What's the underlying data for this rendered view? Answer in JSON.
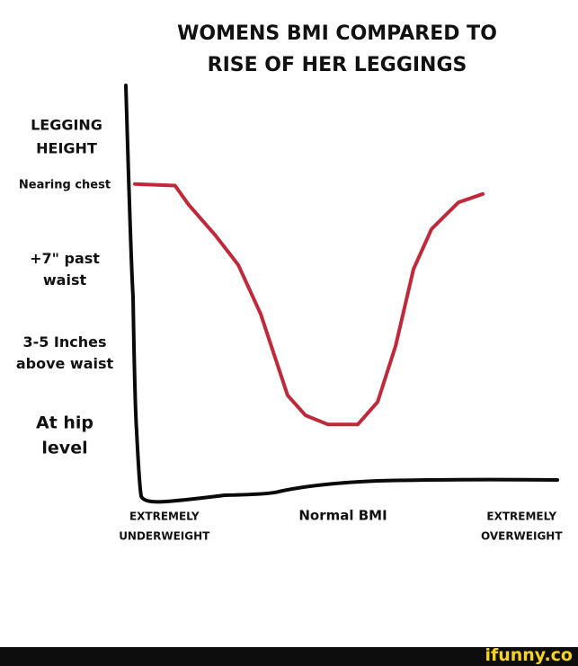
{
  "chart_data": {
    "type": "line",
    "title": [
      "WOMENS BMI COMPARED TO",
      "RISE OF HER LEGGINGS"
    ],
    "y_label": [
      "LEGGING",
      "HEIGHT"
    ],
    "xlim": [
      -0.17,
      2.2
    ],
    "ylim": [
      0.25,
      5.2
    ],
    "xticks": [
      {
        "value": 0,
        "label": "EXTREMELY UNDERWEIGHT"
      },
      {
        "value": 1,
        "label": "Normal BMI"
      },
      {
        "value": 2,
        "label": "EXTREMELY OVERWEIGHT"
      }
    ],
    "yticks": [
      {
        "value": 4,
        "label": "Nearing chest"
      },
      {
        "value": 3,
        "label": "+7\" past waist"
      },
      {
        "value": 2,
        "label": "3-5 Inches above waist"
      },
      {
        "value": 1,
        "label": "At hip level"
      }
    ],
    "series": [
      {
        "color": "#c0293a",
        "x": [
          -0.165,
          0.06,
          0.137,
          0.288,
          0.414,
          0.54,
          0.69,
          0.79,
          0.917,
          1.083,
          1.194,
          1.295,
          1.395,
          1.496,
          1.647,
          1.783
        ],
        "values": [
          4.02,
          4.0,
          3.77,
          3.4,
          3.05,
          2.46,
          1.49,
          1.25,
          1.14,
          1.14,
          1.41,
          2.08,
          3.0,
          3.48,
          3.8,
          3.9
        ]
      }
    ]
  },
  "watermark": "ifunny.co"
}
